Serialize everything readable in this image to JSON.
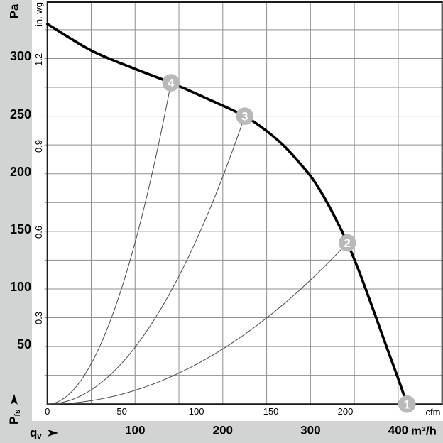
{
  "colors": {
    "canvas_bg": "#d2d3d3",
    "plot_bg": "#ffffff",
    "grid": "#8f8f8f",
    "frame": "#1c1c1c",
    "fan_curve": "#000000",
    "system_curve": "#4a4a4a",
    "marker_fill": "#b9b9b9",
    "marker_text": "#ffffff"
  },
  "labels": {
    "pa_title": "Pa",
    "inwg_title": "in. wg",
    "cfm_unit": "cfm",
    "m3h_unit": "m³/h",
    "qv_main": "q",
    "qv_sub": "v",
    "pfs_main": "P",
    "pfs_sub": "fs"
  },
  "chart_data": {
    "type": "line",
    "title": "",
    "xlabel_primary": "m³/h",
    "xlabel_secondary": "cfm",
    "ylabel_primary": "Pa",
    "ylabel_secondary": "in. wg",
    "x_axis_quantity": "qv",
    "y_axis_quantity": "Pfs",
    "xlim_m3h": [
      0,
      450
    ],
    "ylim_pa": [
      0,
      349
    ],
    "x_ticks_m3h": [
      100,
      200,
      300,
      400
    ],
    "x_ticks_cfm": [
      0,
      50,
      100,
      150,
      200
    ],
    "y_ticks_pa": [
      50,
      100,
      150,
      200,
      250,
      300
    ],
    "y_ticks_inwg": [
      "0.3",
      "0.6",
      "0.9",
      "1.2"
    ],
    "grid_x_step_m3h": 50,
    "grid_y_step_pa": 25,
    "cfm_to_m3h": 1.699,
    "inwg_to_pa": 249.089,
    "grid": true,
    "series": [
      {
        "name": "fan-curve",
        "points": [
          [
            0,
            330
          ],
          [
            50,
            307
          ],
          [
            100,
            291
          ],
          [
            141,
            279
          ],
          [
            180,
            266
          ],
          [
            225,
            250
          ],
          [
            250,
            237
          ],
          [
            270,
            224
          ],
          [
            288,
            209
          ],
          [
            302,
            196
          ],
          [
            316,
            179
          ],
          [
            330,
            159
          ],
          [
            342,
            140
          ],
          [
            356,
            114
          ],
          [
            372,
            81
          ],
          [
            388,
            47
          ],
          [
            400,
            22
          ],
          [
            410,
            0
          ]
        ]
      },
      {
        "name": "system-curve-to-point-4",
        "shape": "parabola",
        "end_point": [
          141,
          279
        ]
      },
      {
        "name": "system-curve-to-point-3",
        "shape": "parabola",
        "end_point": [
          225,
          250
        ]
      },
      {
        "name": "system-curve-to-point-2",
        "shape": "parabola",
        "end_point": [
          342,
          140
        ]
      }
    ],
    "operating_points": [
      {
        "label": "1",
        "m3h": 410,
        "pa": 0
      },
      {
        "label": "2",
        "m3h": 342,
        "pa": 140
      },
      {
        "label": "3",
        "m3h": 225,
        "pa": 250
      },
      {
        "label": "4",
        "m3h": 141,
        "pa": 279
      }
    ]
  }
}
